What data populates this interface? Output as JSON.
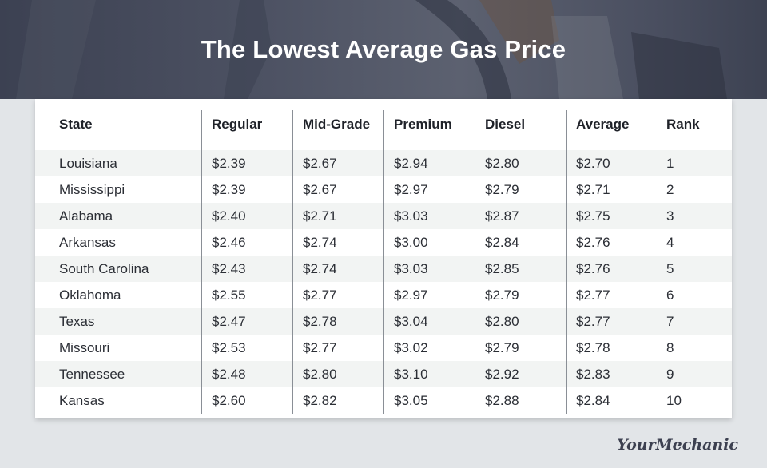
{
  "title": "The Lowest Average Gas Price",
  "brand": "YourMechanic",
  "colors": {
    "header_bg": "#4a4f60",
    "page_bg": "#e2e5e8",
    "row_shade": "#f2f4f3",
    "text": "#2b2e35"
  },
  "chart_data": {
    "type": "table",
    "title": "The Lowest Average Gas Price",
    "columns": [
      "State",
      "Regular",
      "Mid-Grade",
      "Premium",
      "Diesel",
      "Average",
      "Rank"
    ],
    "rows": [
      [
        "Louisiana",
        "$2.39",
        "$2.67",
        "$2.94",
        "$2.80",
        "$2.70",
        "1"
      ],
      [
        "Mississippi",
        "$2.39",
        "$2.67",
        "$2.97",
        "$2.79",
        "$2.71",
        "2"
      ],
      [
        "Alabama",
        "$2.40",
        "$2.71",
        "$3.03",
        "$2.87",
        "$2.75",
        "3"
      ],
      [
        "Arkansas",
        "$2.46",
        "$2.74",
        "$3.00",
        "$2.84",
        "$2.76",
        "4"
      ],
      [
        "South Carolina",
        "$2.43",
        "$2.74",
        "$3.03",
        "$2.85",
        "$2.76",
        "5"
      ],
      [
        "Oklahoma",
        "$2.55",
        "$2.77",
        "$2.97",
        "$2.79",
        "$2.77",
        "6"
      ],
      [
        "Texas",
        "$2.47",
        "$2.78",
        "$3.04",
        "$2.80",
        "$2.77",
        "7"
      ],
      [
        "Missouri",
        "$2.53",
        "$2.77",
        "$3.02",
        "$2.79",
        "$2.78",
        "8"
      ],
      [
        "Tennessee",
        "$2.48",
        "$2.80",
        "$3.10",
        "$2.92",
        "$2.83",
        "9"
      ],
      [
        "Kansas",
        "$2.60",
        "$2.82",
        "$3.05",
        "$2.88",
        "$2.84",
        "10"
      ]
    ]
  }
}
